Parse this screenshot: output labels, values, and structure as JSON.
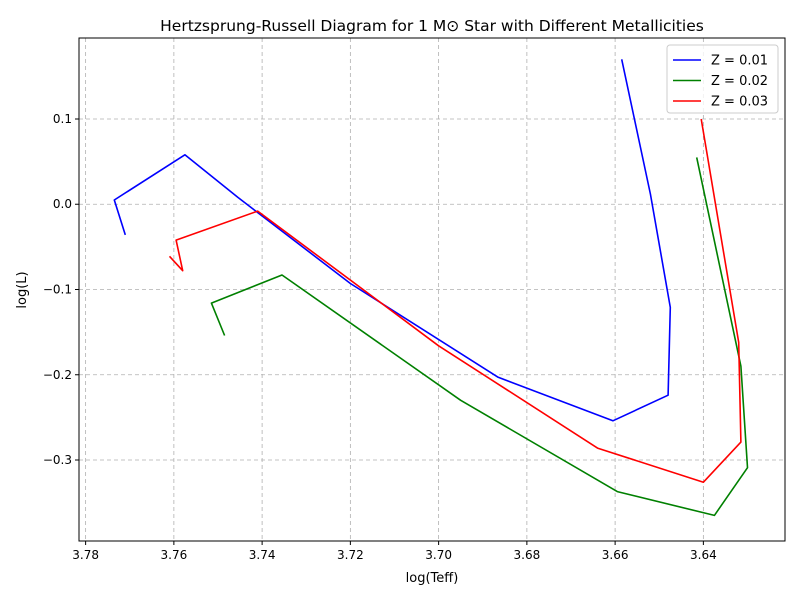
{
  "chart_data": {
    "type": "line",
    "title": "Hertzsprung-Russell Diagram for 1 M⊙ Star with Different Metallicities",
    "xlabel": "log(Teff)",
    "ylabel": "log(L)",
    "xlim": [
      3.7815,
      3.6215
    ],
    "ylim": [
      -0.395,
      0.195
    ],
    "x_inverted": true,
    "xticks": [
      3.78,
      3.76,
      3.74,
      3.72,
      3.7,
      3.68,
      3.66,
      3.64
    ],
    "xtick_labels": [
      "3.78",
      "3.76",
      "3.74",
      "3.72",
      "3.70",
      "3.68",
      "3.66",
      "3.64"
    ],
    "yticks": [
      0.1,
      0.0,
      -0.1,
      -0.2,
      -0.3
    ],
    "ytick_labels": [
      "0.1",
      "0.0",
      "−0.1",
      "−0.2",
      "−0.3"
    ],
    "grid": true,
    "legend_position": "top-right",
    "series": [
      {
        "name": "Z = 0.01",
        "color": "#0000ff",
        "points": [
          [
            3.771,
            -0.036
          ],
          [
            3.7735,
            0.005
          ],
          [
            3.7575,
            0.058
          ],
          [
            3.7455,
            0.008
          ],
          [
            3.72,
            -0.093
          ],
          [
            3.6865,
            -0.203
          ],
          [
            3.6605,
            -0.254
          ],
          [
            3.648,
            -0.224
          ],
          [
            3.6475,
            -0.121
          ],
          [
            3.652,
            0.012
          ],
          [
            3.6585,
            0.17
          ]
        ]
      },
      {
        "name": "Z = 0.02",
        "color": "#008000",
        "points": [
          [
            3.7485,
            -0.154
          ],
          [
            3.7515,
            -0.116
          ],
          [
            3.7355,
            -0.083
          ],
          [
            3.695,
            -0.23
          ],
          [
            3.6595,
            -0.337
          ],
          [
            3.6375,
            -0.365
          ],
          [
            3.63,
            -0.309
          ],
          [
            3.6315,
            -0.19
          ],
          [
            3.6415,
            0.055
          ]
        ]
      },
      {
        "name": "Z = 0.03",
        "color": "#ff0000",
        "points": [
          [
            3.761,
            -0.061
          ],
          [
            3.758,
            -0.078
          ],
          [
            3.7595,
            -0.042
          ],
          [
            3.741,
            -0.008
          ],
          [
            3.7,
            -0.166
          ],
          [
            3.664,
            -0.286
          ],
          [
            3.64,
            -0.326
          ],
          [
            3.6315,
            -0.279
          ],
          [
            3.632,
            -0.162
          ],
          [
            3.6405,
            0.1
          ]
        ]
      }
    ]
  }
}
